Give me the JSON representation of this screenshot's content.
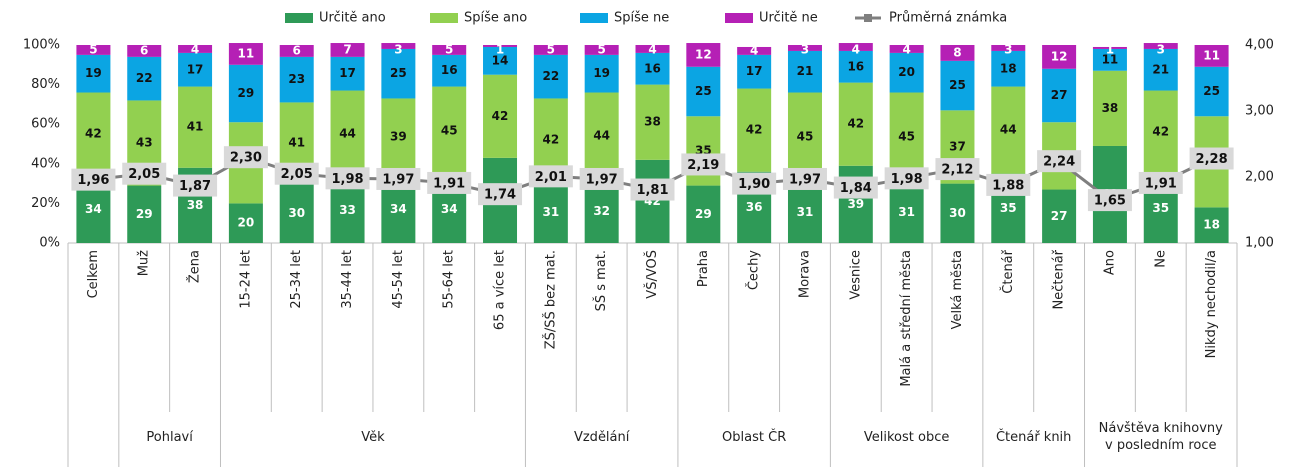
{
  "chart_data": {
    "type": "bar",
    "stacked": true,
    "category_groups": [
      {
        "name": null,
        "categories": [
          "Celkem"
        ]
      },
      {
        "name": "Pohlaví",
        "categories": [
          "Muž",
          "Žena"
        ]
      },
      {
        "name": "Věk",
        "categories": [
          "15-24 let",
          "25-34 let",
          "35-44 let",
          "45-54 let",
          "55-64 let",
          "65 a více let"
        ]
      },
      {
        "name": "Vzdělání",
        "categories": [
          "ZŠ/SŠ bez mat.",
          "SŠ s mat.",
          "VŠ/VOŠ"
        ]
      },
      {
        "name": "Oblast ČR",
        "categories": [
          "Praha",
          "Čechy",
          "Morava"
        ]
      },
      {
        "name": "Velikost obce",
        "categories": [
          "Vesnice",
          "Malá a střední města",
          "Velká města"
        ]
      },
      {
        "name": "Čtenář knih",
        "categories": [
          "Čtenář",
          "Nečtenář"
        ]
      },
      {
        "name": "Návštěva knihovny v posledním roce",
        "categories": [
          "Ano",
          "Ne",
          "Nikdy nechodil/a"
        ]
      }
    ],
    "series": [
      {
        "name": "Určitě ano",
        "color": "#2e9a57",
        "values": [
          34,
          29,
          38,
          20,
          30,
          33,
          34,
          34,
          43,
          31,
          32,
          42,
          29,
          36,
          31,
          39,
          31,
          30,
          35,
          27,
          49,
          35,
          18
        ]
      },
      {
        "name": "Spíše ano",
        "color": "#92d050",
        "values": [
          42,
          43,
          41,
          41,
          41,
          44,
          39,
          45,
          42,
          42,
          44,
          38,
          35,
          42,
          45,
          42,
          45,
          37,
          44,
          34,
          38,
          42,
          46
        ]
      },
      {
        "name": "Spíše ne",
        "color": "#0ba5e3",
        "values": [
          19,
          22,
          17,
          29,
          23,
          17,
          25,
          16,
          14,
          22,
          19,
          16,
          25,
          17,
          21,
          16,
          20,
          25,
          18,
          27,
          11,
          21,
          25
        ]
      },
      {
        "name": "Určitě ne",
        "color": "#b520b5",
        "values": [
          5,
          6,
          4,
          11,
          6,
          7,
          3,
          5,
          1,
          5,
          5,
          4,
          12,
          4,
          3,
          4,
          4,
          8,
          3,
          12,
          1,
          3,
          11
        ]
      },
      {
        "name": "Průměrná známka",
        "type": "line",
        "axis": "y2",
        "color": "#7f7f7f",
        "values": [
          1.96,
          2.05,
          1.87,
          2.3,
          2.05,
          1.98,
          1.97,
          1.91,
          1.74,
          2.01,
          1.97,
          1.81,
          2.19,
          1.9,
          1.97,
          1.84,
          1.98,
          2.12,
          1.88,
          2.24,
          1.65,
          1.91,
          2.28
        ],
        "value_labels": [
          "1,96",
          "2,05",
          "1,87",
          "2,30",
          "2,05",
          "1,98",
          "1,97",
          "1,91",
          "1,74",
          "2,01",
          "1,97",
          "1,81",
          "2,19",
          "1,90",
          "1,97",
          "1,84",
          "1,98",
          "2,12",
          "1,88",
          "2,24",
          "1,65",
          "1,91",
          "2,28"
        ]
      }
    ],
    "ylim": [
      0,
      100
    ],
    "yticks": [
      {
        "value": 0,
        "label": "0%"
      },
      {
        "value": 20,
        "label": "20%"
      },
      {
        "value": 40,
        "label": "40%"
      },
      {
        "value": 60,
        "label": "60%"
      },
      {
        "value": 80,
        "label": "80%"
      },
      {
        "value": 100,
        "label": "100%"
      }
    ],
    "y2lim": [
      1,
      4
    ],
    "y2ticks": [
      {
        "value": 1,
        "label": "1,00"
      },
      {
        "value": 2,
        "label": "2,00"
      },
      {
        "value": 3,
        "label": "3,00"
      },
      {
        "value": 4,
        "label": "4,00"
      }
    ],
    "legend": "top"
  }
}
